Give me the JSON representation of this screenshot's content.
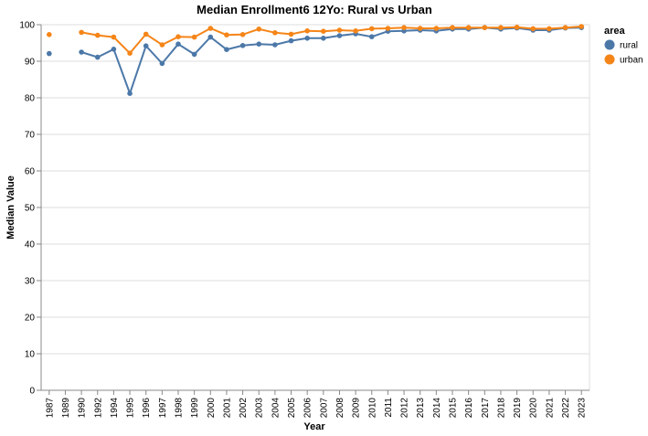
{
  "chart_data": {
    "type": "line",
    "title": "Median Enrollment6 12Yo: Rural vs Urban",
    "xlabel": "Year",
    "ylabel": "Median Value",
    "ylim": [
      0,
      100
    ],
    "yticks": [
      0,
      10,
      20,
      30,
      40,
      50,
      60,
      70,
      80,
      90,
      100
    ],
    "categories": [
      "1987",
      "1989",
      "1990",
      "1992",
      "1994",
      "1995",
      "1996",
      "1997",
      "1998",
      "1999",
      "2000",
      "2001",
      "2002",
      "2003",
      "2004",
      "2005",
      "2006",
      "2007",
      "2008",
      "2009",
      "2010",
      "2011",
      "2012",
      "2013",
      "2014",
      "2015",
      "2016",
      "2017",
      "2018",
      "2019",
      "2020",
      "2021",
      "2022",
      "2023"
    ],
    "grid": true,
    "legend": {
      "title": "area",
      "position": "top-right"
    },
    "series": [
      {
        "name": "rural",
        "color": "#4c78a8",
        "values": [
          92.1,
          null,
          92.5,
          91.1,
          93.3,
          81.2,
          94.2,
          89.4,
          94.7,
          91.9,
          96.6,
          93.2,
          94.3,
          94.7,
          94.5,
          95.6,
          96.3,
          96.3,
          97.0,
          97.5,
          96.7,
          98.2,
          98.3,
          98.5,
          98.3,
          98.8,
          98.8,
          99.2,
          98.8,
          99.1,
          98.5,
          98.5,
          99.1,
          99.2
        ]
      },
      {
        "name": "urban",
        "color": "#f58518",
        "values": [
          97.3,
          null,
          97.9,
          97.1,
          96.6,
          92.2,
          97.4,
          94.5,
          96.7,
          96.6,
          99.0,
          97.2,
          97.3,
          98.8,
          97.8,
          97.4,
          98.3,
          98.2,
          98.5,
          98.3,
          98.9,
          99.0,
          99.2,
          99.0,
          99.0,
          99.2,
          99.2,
          99.2,
          99.2,
          99.3,
          98.9,
          98.9,
          99.2,
          99.5
        ]
      }
    ]
  }
}
